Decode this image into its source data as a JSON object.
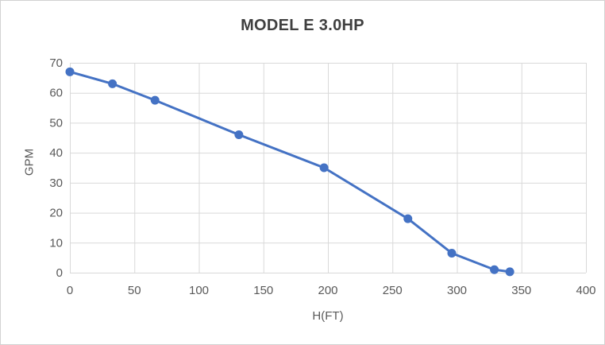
{
  "chart_data": {
    "type": "line",
    "title": "MODEL E 3.0HP",
    "xlabel": "H(FT)",
    "ylabel": "GPM",
    "xlim": [
      0,
      400
    ],
    "ylim": [
      0,
      70
    ],
    "xticks": [
      0,
      50,
      100,
      150,
      200,
      250,
      300,
      350,
      400
    ],
    "yticks": [
      0,
      10,
      20,
      30,
      40,
      50,
      60,
      70
    ],
    "grid": true,
    "legend_position": "none",
    "marker": "circle",
    "series": [
      {
        "name": "MODEL E 3.0HP",
        "color": "#4472C4",
        "x": [
          0,
          33,
          66,
          131,
          197,
          262,
          296,
          329,
          341
        ],
        "y": [
          67,
          63,
          57.5,
          46,
          35,
          18,
          6.5,
          1,
          0.3
        ]
      }
    ]
  },
  "colors": {
    "accent": "#4472C4",
    "gridline": "#d9d9d9",
    "axis_text": "#595959",
    "title_text": "#404040",
    "frame_border": "#d2d2d2",
    "background": "#ffffff"
  }
}
